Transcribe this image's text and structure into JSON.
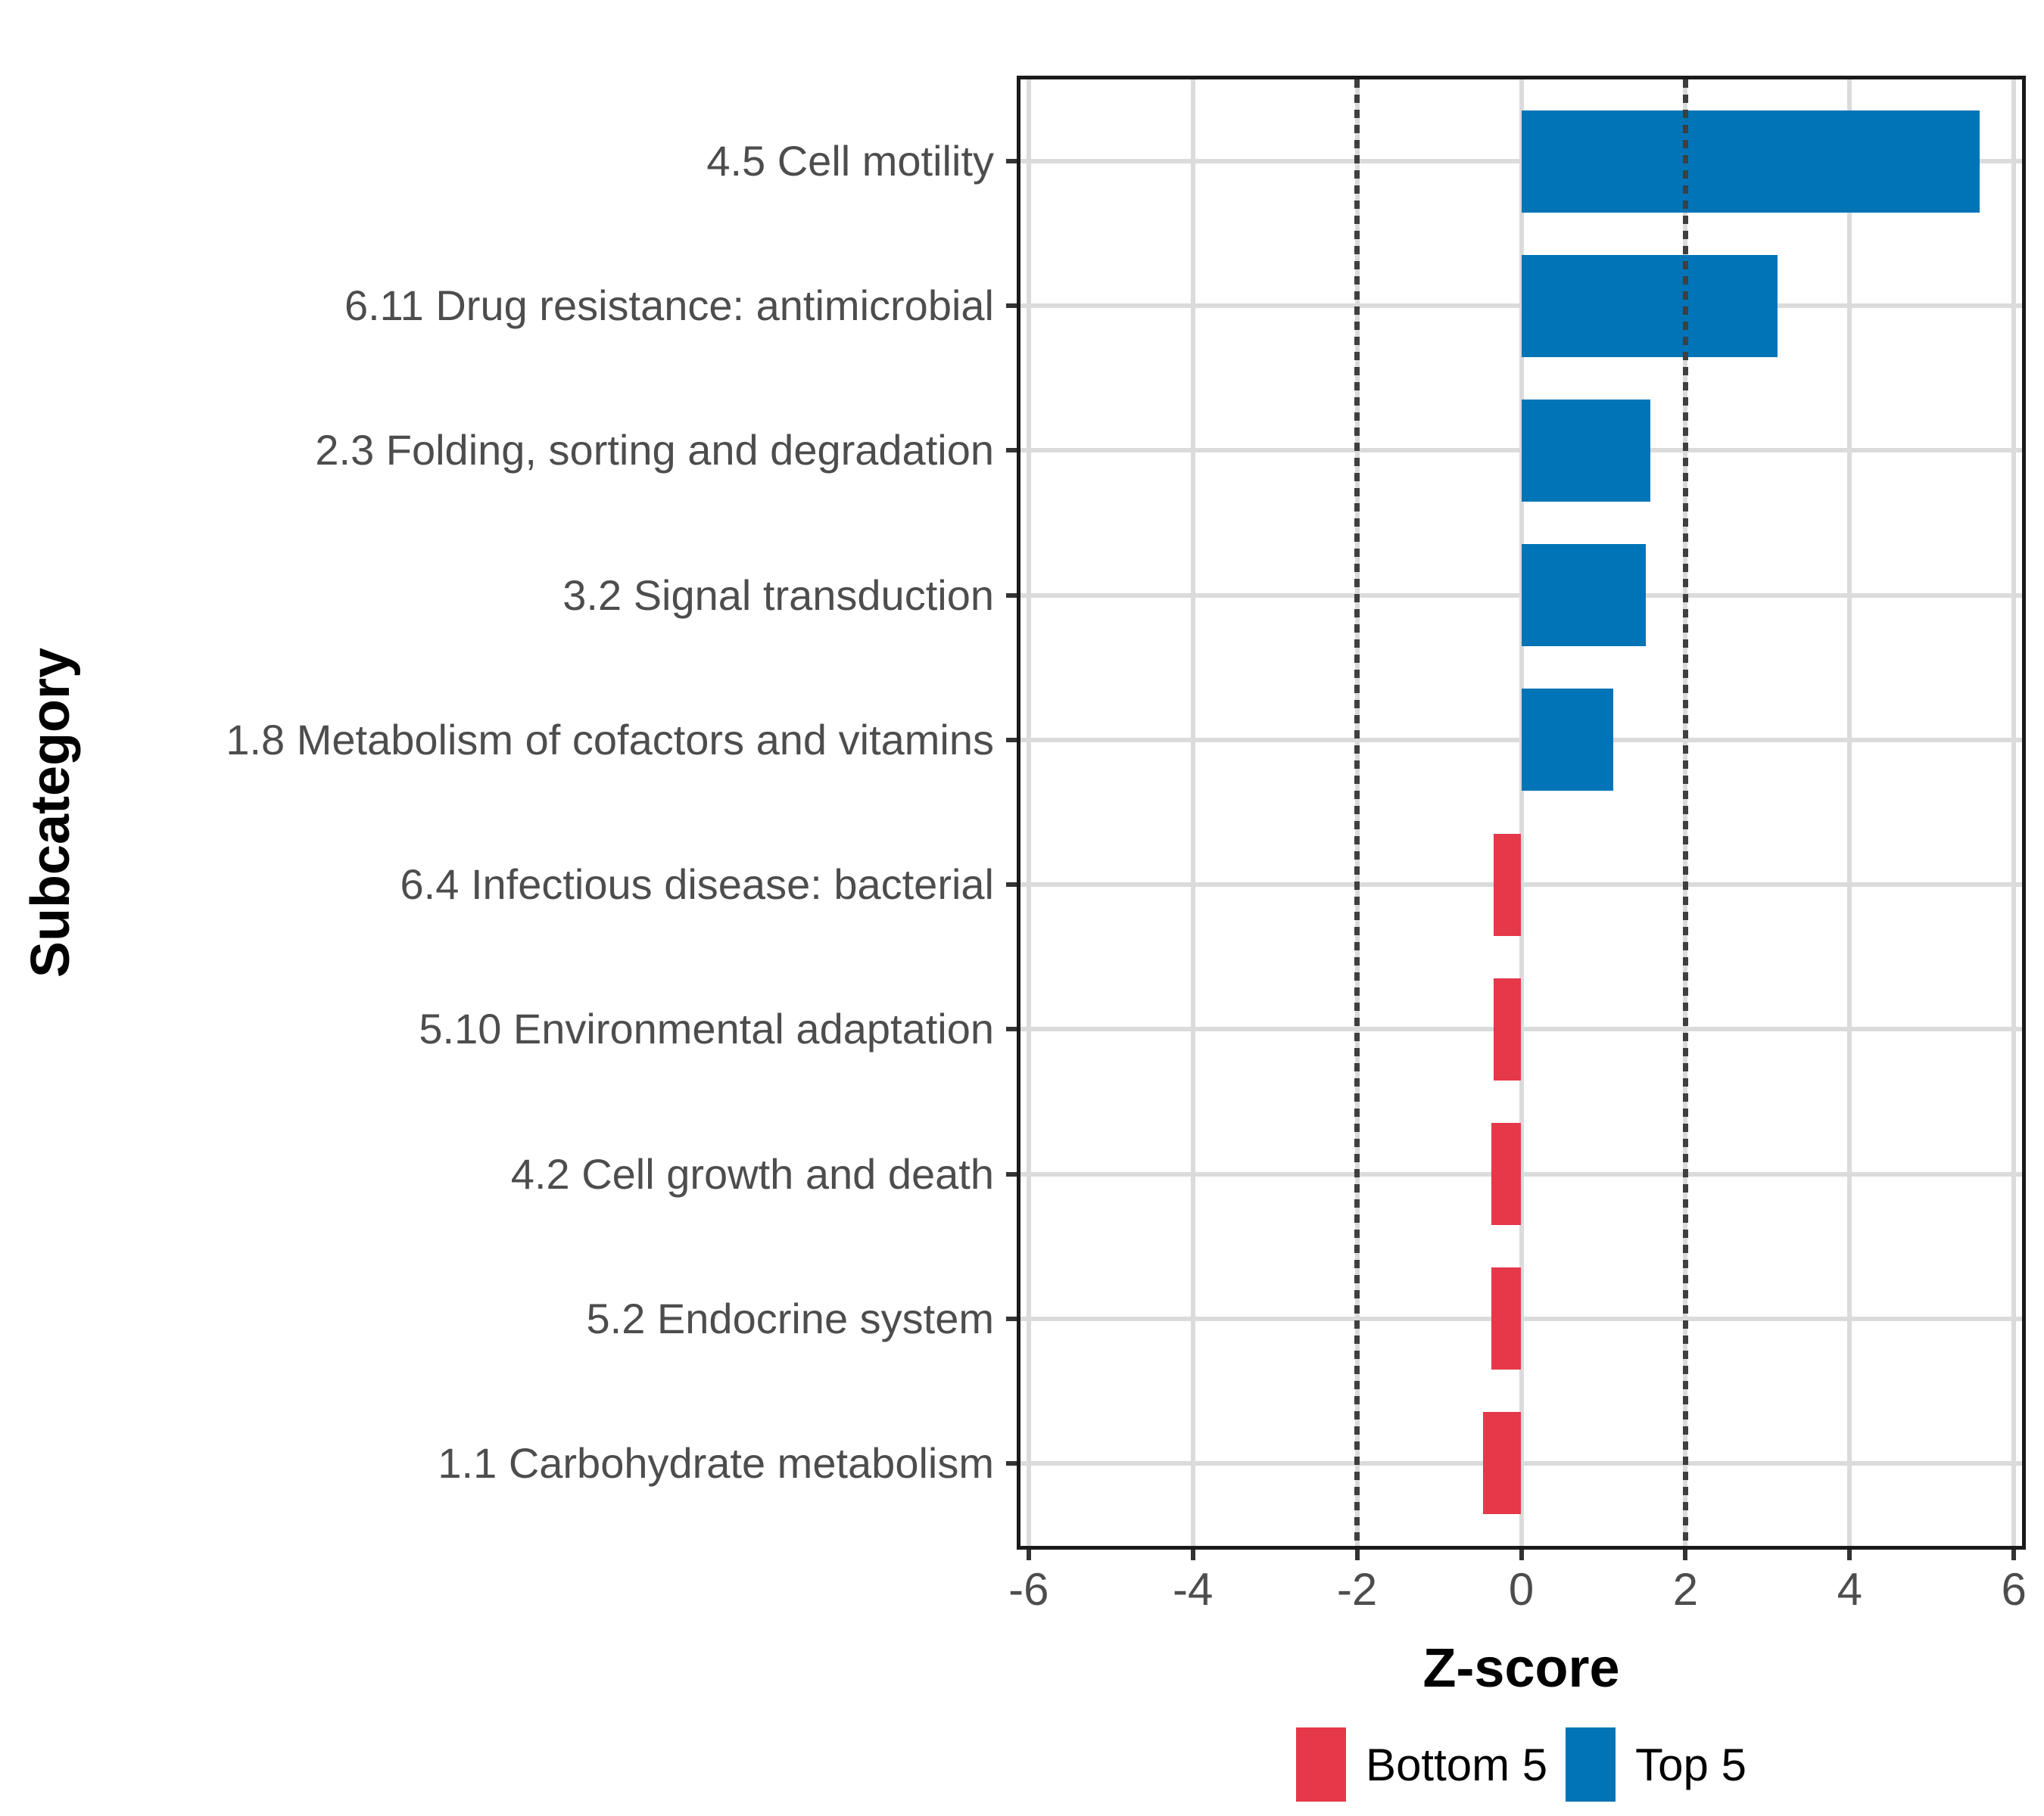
{
  "chart_data": {
    "type": "bar",
    "orientation": "horizontal",
    "xlabel": "Z-score",
    "ylabel": "Subcategory",
    "xlim": [
      -6.1,
      6.1
    ],
    "x_ticks": [
      -6,
      -4,
      -2,
      0,
      2,
      4,
      6
    ],
    "grid": {
      "vertical_at": [
        -6,
        -4,
        -2,
        0,
        2,
        4,
        6
      ],
      "horizontal": "category-centers",
      "color": "#DBDBDB"
    },
    "reference_lines": {
      "values": [
        -2,
        2
      ],
      "style": "dotted",
      "color": "#3F3F3F"
    },
    "categories": [
      "4.5 Cell motility",
      "6.11 Drug resistance: antimicrobial",
      "2.3 Folding, sorting and degradation",
      "3.2 Signal transduction",
      "1.8 Metabolism of cofactors and vitamins",
      "6.4 Infectious disease: bacterial",
      "5.10 Environmental adaptation",
      "4.2 Cell growth and death",
      "5.2 Endocrine system",
      "1.1 Carbohydrate metabolism"
    ],
    "values": [
      5.58,
      3.12,
      1.57,
      1.52,
      1.12,
      -0.34,
      -0.34,
      -0.36,
      -0.36,
      -0.47
    ],
    "groups": [
      "Top 5",
      "Top 5",
      "Top 5",
      "Top 5",
      "Top 5",
      "Bottom 5",
      "Bottom 5",
      "Bottom 5",
      "Bottom 5",
      "Bottom 5"
    ],
    "colors": {
      "Top 5": "#0074B6",
      "Bottom 5": "#E5394A"
    },
    "legend": {
      "position": "bottom",
      "entries": [
        {
          "label": "Bottom 5",
          "color": "#E5394A"
        },
        {
          "label": "Top 5",
          "color": "#0074B6"
        }
      ]
    },
    "style_colors": {
      "panel_border": "#1A1A1A",
      "tick_mark": "#333333",
      "axis_text": "#4D4D4D",
      "axis_title": "#000000",
      "background": "#FFFFFF"
    }
  }
}
